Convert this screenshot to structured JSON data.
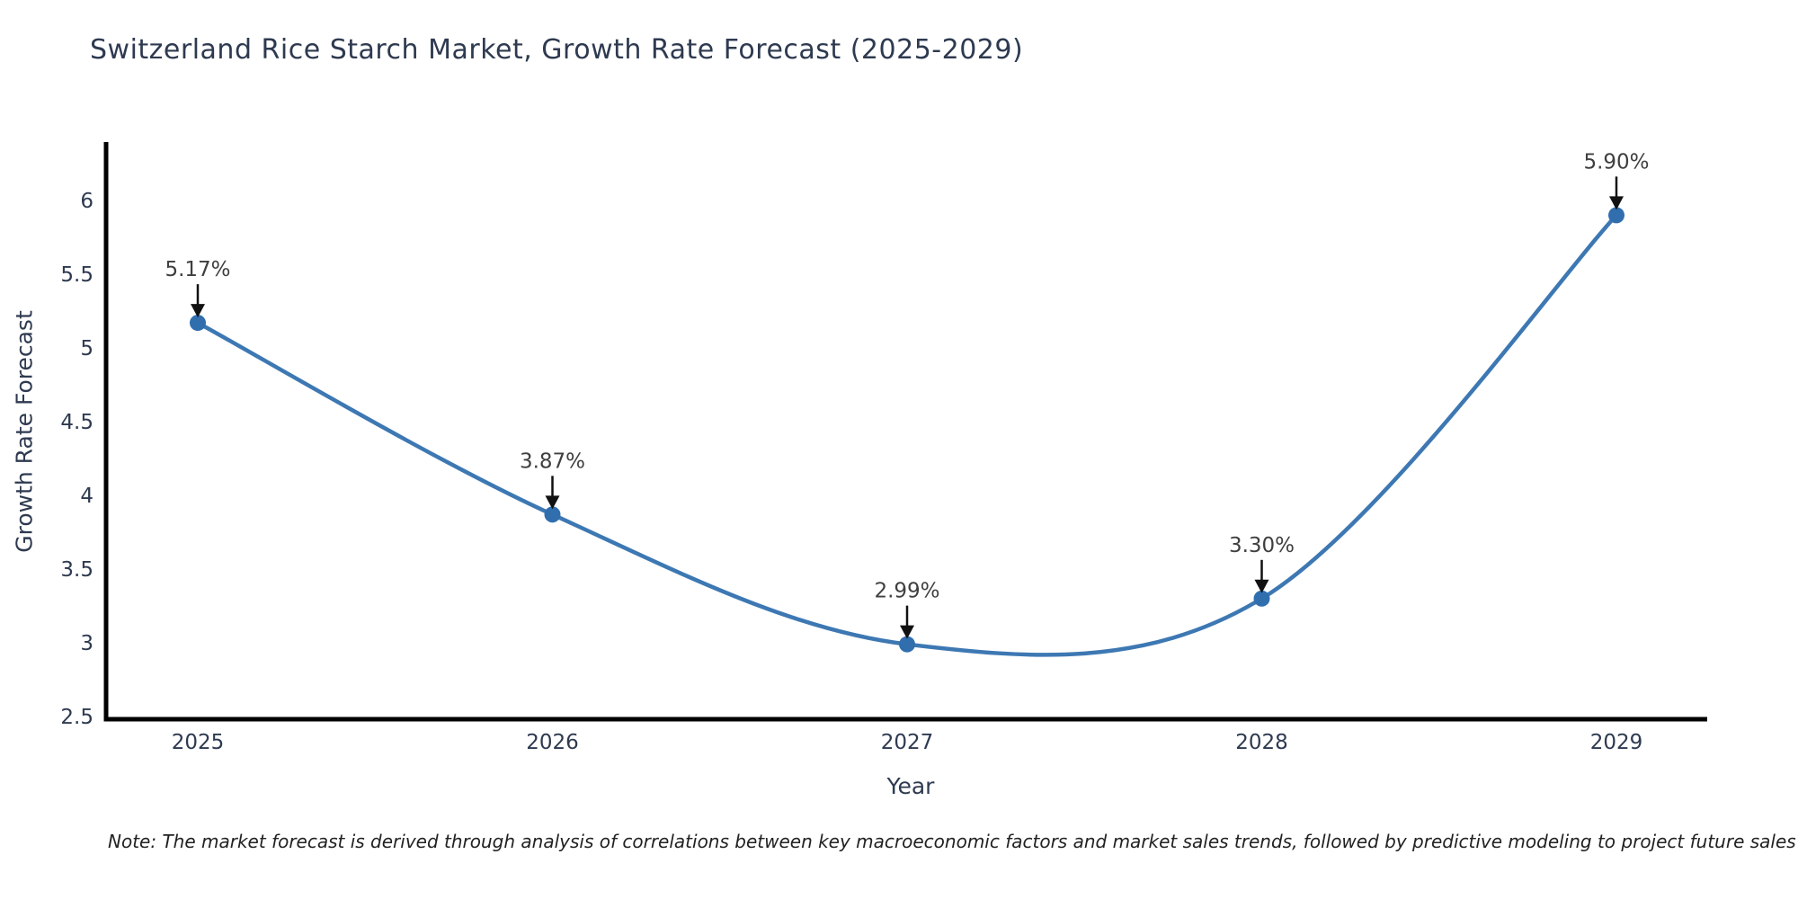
{
  "chart_data": {
    "type": "line",
    "title": "Switzerland Rice Starch Market, Growth Rate Forecast (2025-2029)",
    "xlabel": "Year",
    "ylabel": "Growth Rate Forecast",
    "categories": [
      "2025",
      "2026",
      "2027",
      "2028",
      "2029"
    ],
    "series": [
      {
        "name": "Growth Rate Forecast",
        "values": [
          5.17,
          3.87,
          2.99,
          3.3,
          5.9
        ]
      }
    ],
    "point_labels": [
      "5.17%",
      "3.87%",
      "2.99%",
      "3.30%",
      "5.90%"
    ],
    "yticks": [
      2.5,
      3,
      3.5,
      4,
      4.5,
      5,
      5.5,
      6
    ],
    "ytick_labels": [
      "2.5",
      "3",
      "3.5",
      "4",
      "4.5",
      "5",
      "5.5",
      "6"
    ],
    "ylim": [
      2.5,
      6.25
    ],
    "line_shape": "spline",
    "grid": false,
    "legend": "none",
    "colors": {
      "line": "#3d78b3",
      "marker": "#316eae",
      "axis": "#000000",
      "tick_label": "#2e3a50",
      "title": "#2e3a50",
      "annotation_text": "#3f3f3f",
      "arrow": "#111111",
      "background": "#ffffff"
    }
  },
  "note": {
    "text": "Note: The market forecast is derived through analysis of correlations between key macroeconomic factors and market sales trends, followed by predictive modeling to project future sales"
  }
}
